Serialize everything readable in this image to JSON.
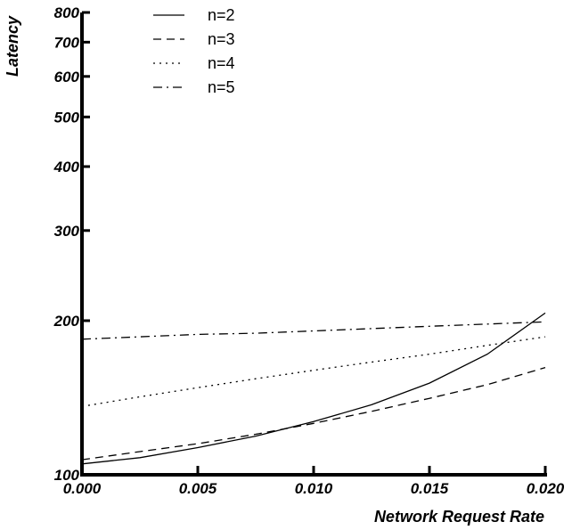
{
  "chart_data": {
    "type": "line",
    "xlabel": "Network Request Rate",
    "ylabel": "Latency",
    "xlim": [
      0.0,
      0.02
    ],
    "ylim": [
      100,
      800
    ],
    "y_scale": "log",
    "x_ticks": [
      "0.000",
      "0.005",
      "0.010",
      "0.015",
      "0.020"
    ],
    "y_ticks": [
      {
        "value": 100,
        "label": "100"
      },
      {
        "value": 200,
        "label": "200"
      },
      {
        "value": 300,
        "label": "300"
      },
      {
        "value": 400,
        "label": "400"
      },
      {
        "value": 500,
        "label": "500"
      },
      {
        "value": 600,
        "label": "600"
      },
      {
        "value": 700,
        "label": "700"
      },
      {
        "value": 800,
        "label": "800"
      }
    ],
    "grid": false,
    "legend_position": "top-left",
    "x": [
      0.0,
      0.0025,
      0.005,
      0.0075,
      0.01,
      0.0125,
      0.015,
      0.0175,
      0.02
    ],
    "series": [
      {
        "name": "n=2",
        "style": "solid",
        "values": [
          105,
          108,
          113,
          119,
          127,
          137,
          151,
          172,
          207
        ]
      },
      {
        "name": "n=3",
        "style": "dashed",
        "values": [
          107,
          111,
          115,
          120,
          126,
          133,
          141,
          150,
          162
        ]
      },
      {
        "name": "n=4",
        "style": "dotted",
        "values": [
          136,
          142,
          148,
          154,
          160,
          166,
          172,
          179,
          186
        ]
      },
      {
        "name": "n=5",
        "style": "dashdot",
        "values": [
          184,
          186,
          188,
          189,
          191,
          193,
          195,
          197,
          199
        ]
      }
    ]
  }
}
